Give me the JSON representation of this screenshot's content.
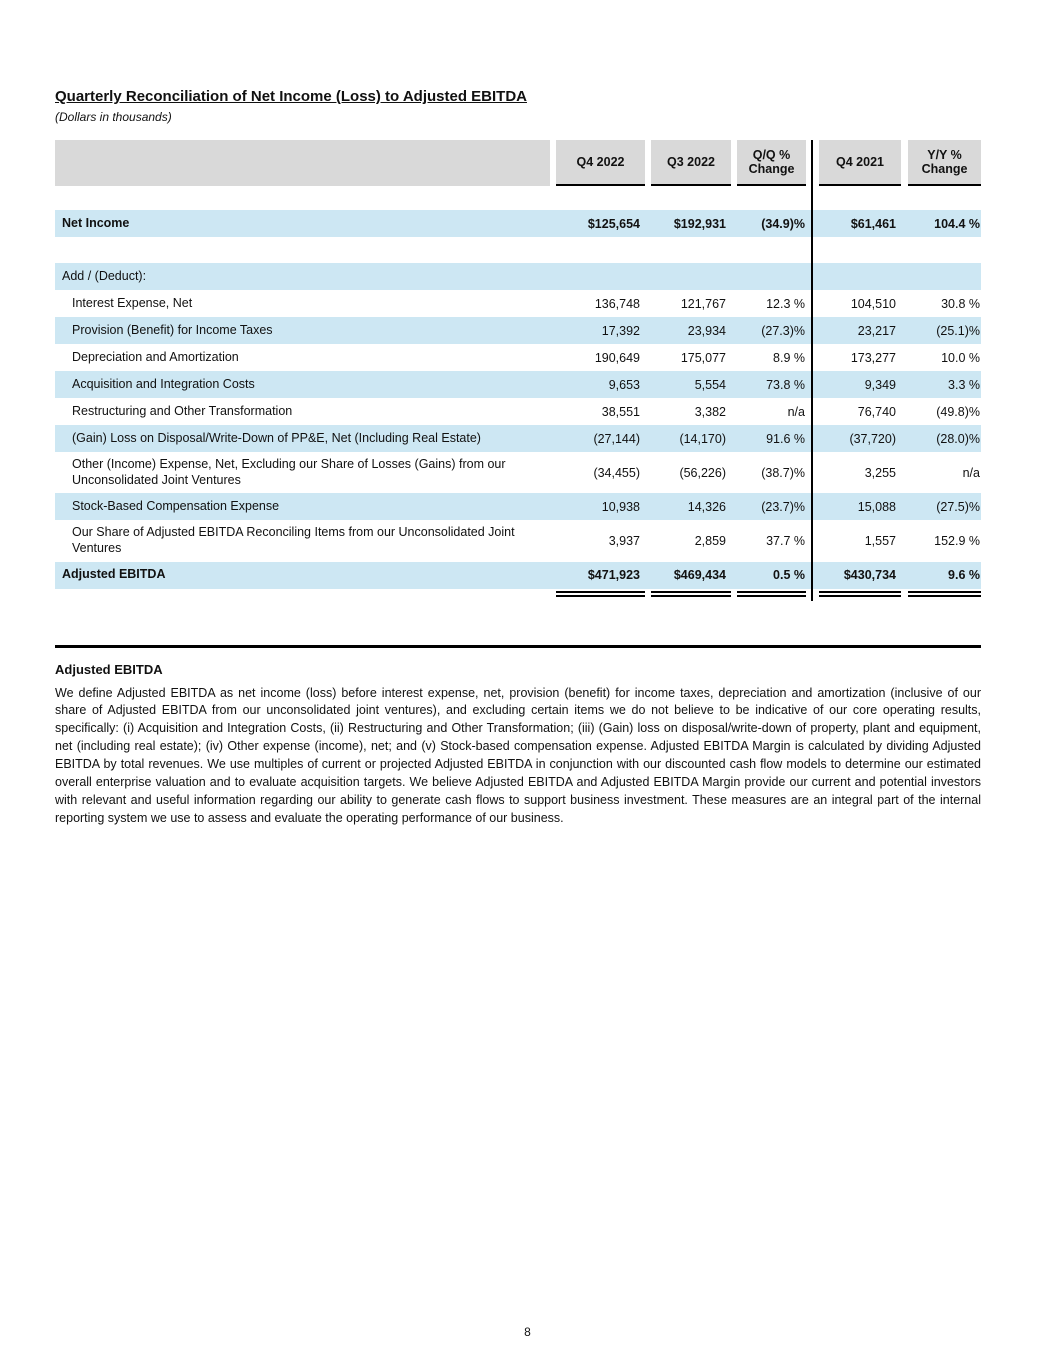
{
  "page": {
    "title": "Quarterly Reconciliation of Net Income (Loss) to Adjusted EBITDA",
    "subtitle": "(Dollars in thousands)",
    "page_number": "8"
  },
  "table": {
    "headers": [
      "Q4 2022",
      "Q3 2022",
      "Q/Q % Change",
      "Q4 2021",
      "Y/Y % Change"
    ],
    "rows": [
      {
        "label": "Net Income",
        "v": [
          "$125,654",
          "$192,931",
          "(34.9)%",
          "$61,461",
          "104.4 %"
        ]
      },
      {
        "label": "Add / (Deduct):",
        "v": [
          "",
          "",
          "",
          "",
          ""
        ]
      },
      {
        "label": "Interest Expense, Net",
        "v": [
          "136,748",
          "121,767",
          "12.3 %",
          "104,510",
          "30.8 %"
        ]
      },
      {
        "label": "Provision (Benefit) for Income Taxes",
        "v": [
          "17,392",
          "23,934",
          "(27.3)%",
          "23,217",
          "(25.1)%"
        ]
      },
      {
        "label": "Depreciation and Amortization",
        "v": [
          "190,649",
          "175,077",
          "8.9 %",
          "173,277",
          "10.0 %"
        ]
      },
      {
        "label": "Acquisition and Integration Costs",
        "v": [
          "9,653",
          "5,554",
          "73.8 %",
          "9,349",
          "3.3 %"
        ]
      },
      {
        "label": "Restructuring and Other Transformation",
        "v": [
          "38,551",
          "3,382",
          "n/a",
          "76,740",
          "(49.8)%"
        ]
      },
      {
        "label": "(Gain) Loss on Disposal/Write-Down of PP&E, Net (Including Real Estate)",
        "v": [
          "(27,144)",
          "(14,170)",
          "91.6 %",
          "(37,720)",
          "(28.0)%"
        ]
      },
      {
        "label": "Other (Income) Expense, Net, Excluding our Share of Losses (Gains) from our Unconsolidated Joint Ventures",
        "v": [
          "(34,455)",
          "(56,226)",
          "(38.7)%",
          "3,255",
          "n/a"
        ]
      },
      {
        "label": "Stock-Based Compensation Expense",
        "v": [
          "10,938",
          "14,326",
          "(23.7)%",
          "15,088",
          "(27.5)%"
        ]
      },
      {
        "label": "Our Share of Adjusted EBITDA Reconciling Items from our Unconsolidated Joint Ventures",
        "v": [
          "3,937",
          "2,859",
          "37.7 %",
          "1,557",
          "152.9 %"
        ]
      },
      {
        "label": "Adjusted EBITDA",
        "v": [
          "$471,923",
          "$469,434",
          "0.5 %",
          "$430,734",
          "9.6 %"
        ]
      }
    ]
  },
  "section": {
    "heading": "Adjusted EBITDA",
    "body": "We define Adjusted EBITDA as net income (loss) before interest expense, net, provision (benefit) for income taxes, depreciation and amortization (inclusive of our share of Adjusted EBITDA from our unconsolidated joint ventures), and excluding certain items we do not believe to be indicative of our core operating results, specifically: (i) Acquisition and Integration Costs, (ii) Restructuring and Other Transformation; (iii) (Gain) loss on disposal/write-down of property, plant and equipment, net (including real estate); (iv) Other expense (income), net; and (v) Stock-based compensation expense. Adjusted EBITDA Margin is calculated by dividing Adjusted EBITDA by total revenues. We use multiples of current or projected Adjusted EBITDA in conjunction with our discounted cash flow models to determine our estimated overall enterprise valuation and to evaluate acquisition targets. We believe Adjusted EBITDA and Adjusted EBITDA Margin provide our current and potential investors with relevant and useful information regarding our ability to generate cash flows to support business investment. These measures are an integral part of the internal reporting system we use to assess and evaluate the operating performance of our business."
  }
}
